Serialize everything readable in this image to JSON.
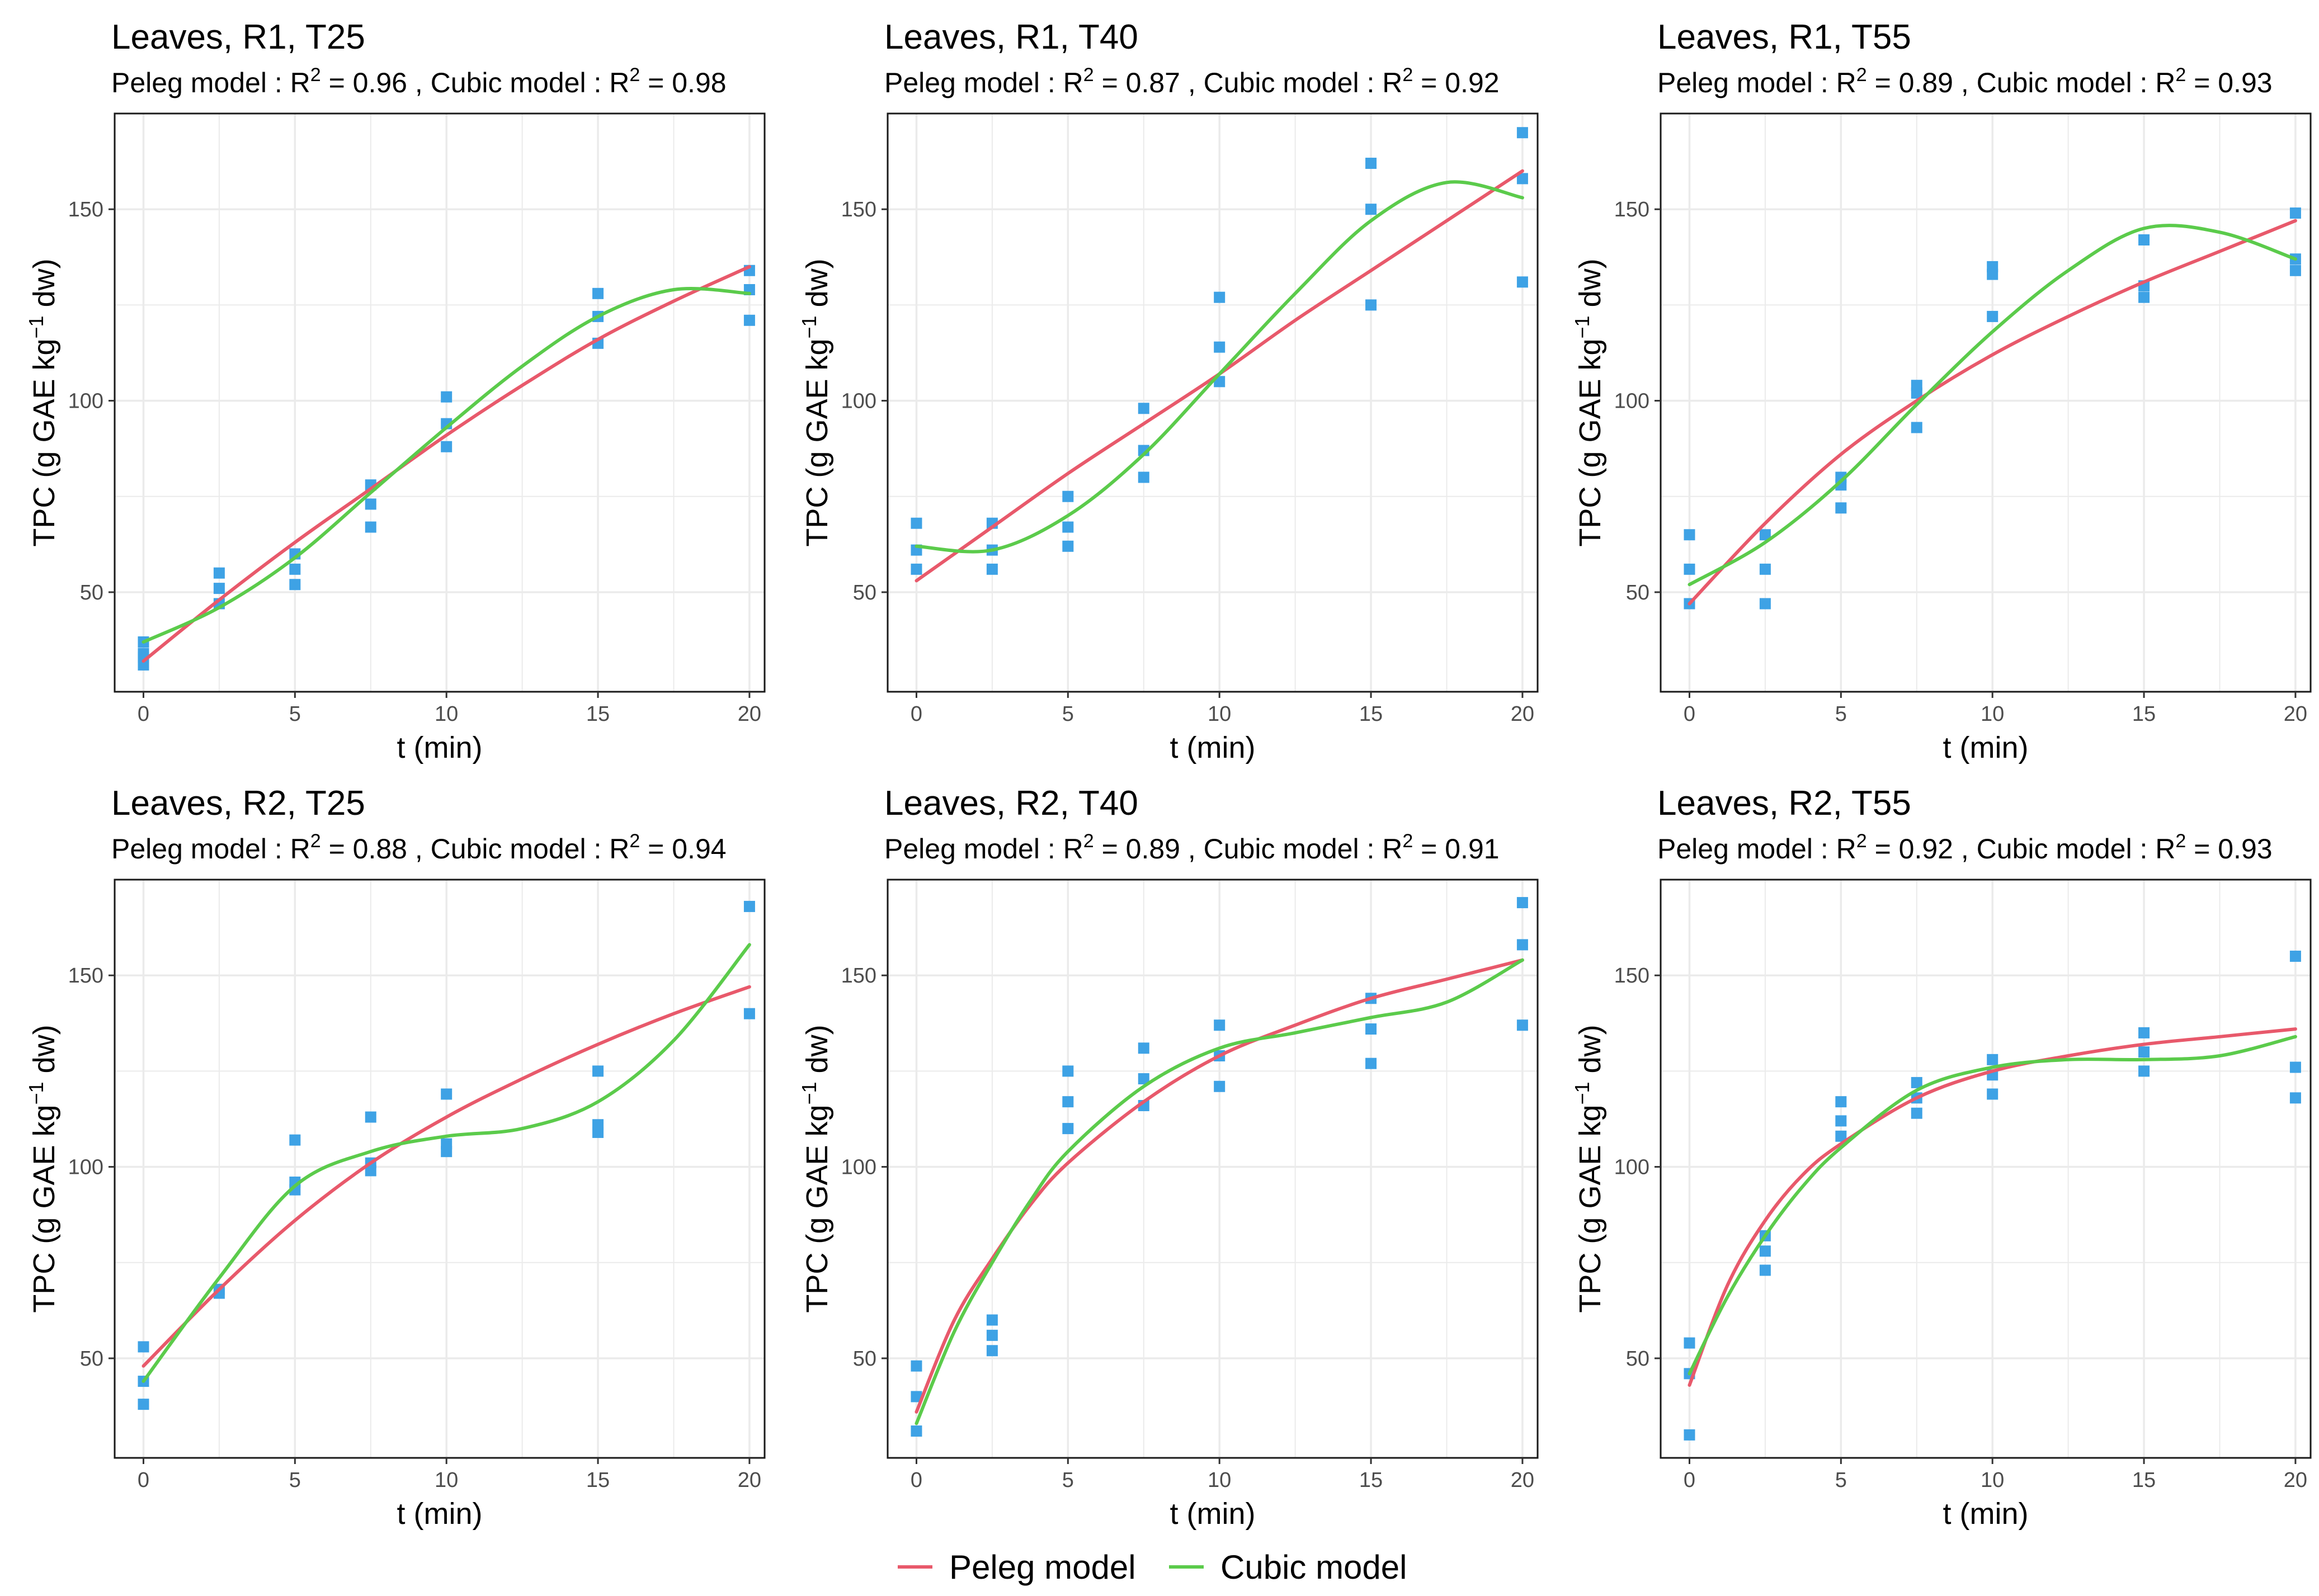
{
  "figure": {
    "legend": [
      {
        "label": "Peleg model",
        "color": "#E8596B"
      },
      {
        "label": "Cubic model",
        "color": "#5BCB4B"
      }
    ],
    "point_color": "#3EA2E5",
    "grid_color": "#EBEBEB"
  },
  "chart_data": [
    {
      "type": "scatter",
      "title": "Leaves, R1, T25",
      "subtitle": {
        "peleg_label": "Peleg model :",
        "peleg_r2": "0.96",
        "cubic_label": "Cubic model :",
        "cubic_r2": "0.98"
      },
      "xlabel": "t (min)",
      "ylabel": "TPC (g GAE kg⁻¹ dw)",
      "xlim": [
        -0.95,
        20.5
      ],
      "ylim": [
        24,
        175
      ],
      "xticks": [
        0,
        5,
        10,
        15,
        20
      ],
      "yticks": [
        50,
        100,
        150
      ],
      "points": {
        "x": [
          0,
          0,
          0,
          0,
          2.5,
          2.5,
          2.5,
          5,
          5,
          5,
          7.5,
          7.5,
          7.5,
          10,
          10,
          10,
          15,
          15,
          15,
          20,
          20,
          20
        ],
        "y": [
          37,
          34,
          33,
          31,
          55,
          51,
          47,
          60,
          56,
          52,
          78,
          73,
          67,
          101,
          94,
          88,
          128,
          122,
          115,
          134,
          129,
          121
        ]
      },
      "series": [
        {
          "name": "Peleg model",
          "x": [
            0,
            2.5,
            5,
            7.5,
            10,
            12.5,
            15,
            17.5,
            20
          ],
          "y": [
            32,
            48,
            63,
            77,
            91,
            104,
            116,
            126,
            135
          ]
        },
        {
          "name": "Cubic model",
          "x": [
            0,
            2.5,
            5,
            7.5,
            10,
            12.5,
            15,
            17.5,
            20
          ],
          "y": [
            37,
            46,
            59,
            76,
            93,
            109,
            122,
            129,
            128
          ]
        }
      ]
    },
    {
      "type": "scatter",
      "title": "Leaves, R1, T40",
      "subtitle": {
        "peleg_label": "Peleg model :",
        "peleg_r2": "0.87",
        "cubic_label": "Cubic model :",
        "cubic_r2": "0.92"
      },
      "xlabel": "t (min)",
      "ylabel": "TPC (g GAE kg⁻¹ dw)",
      "xlim": [
        -0.95,
        20.5
      ],
      "ylim": [
        24,
        175
      ],
      "xticks": [
        0,
        5,
        10,
        15,
        20
      ],
      "yticks": [
        50,
        100,
        150
      ],
      "points": {
        "x": [
          0,
          0,
          0,
          2.5,
          2.5,
          2.5,
          5,
          5,
          5,
          7.5,
          7.5,
          7.5,
          10,
          10,
          10,
          15,
          15,
          15,
          20,
          20,
          20
        ],
        "y": [
          68,
          61,
          56,
          68,
          61,
          56,
          75,
          67,
          62,
          98,
          87,
          80,
          127,
          114,
          105,
          162,
          150,
          125,
          170,
          158,
          131
        ]
      },
      "series": [
        {
          "name": "Peleg model",
          "x": [
            0,
            2.5,
            5,
            7.5,
            10,
            12.5,
            15,
            17.5,
            20
          ],
          "y": [
            53,
            67,
            81,
            94,
            107,
            121,
            134,
            147,
            160
          ]
        },
        {
          "name": "Cubic model",
          "x": [
            0,
            2.5,
            5,
            7.5,
            10,
            12.5,
            15,
            17.5,
            20
          ],
          "y": [
            62,
            61,
            70,
            86,
            107,
            128,
            147,
            157,
            153
          ]
        }
      ]
    },
    {
      "type": "scatter",
      "title": "Leaves, R1, T55",
      "subtitle": {
        "peleg_label": "Peleg model :",
        "peleg_r2": "0.89",
        "cubic_label": "Cubic model :",
        "cubic_r2": "0.93"
      },
      "xlabel": "t (min)",
      "ylabel": "TPC (g GAE kg⁻¹ dw)",
      "xlim": [
        -0.95,
        20.5
      ],
      "ylim": [
        24,
        175
      ],
      "xticks": [
        0,
        5,
        10,
        15,
        20
      ],
      "yticks": [
        50,
        100,
        150
      ],
      "points": {
        "x": [
          0,
          0,
          0,
          2.5,
          2.5,
          2.5,
          5,
          5,
          5,
          7.5,
          7.5,
          7.5,
          10,
          10,
          10,
          15,
          15,
          15,
          20,
          20,
          20
        ],
        "y": [
          65,
          56,
          47,
          65,
          56,
          47,
          80,
          78,
          72,
          104,
          102,
          93,
          135,
          133,
          122,
          142,
          130,
          127,
          149,
          137,
          134
        ]
      },
      "series": [
        {
          "name": "Peleg model",
          "x": [
            0,
            2.5,
            5,
            7.5,
            10,
            12.5,
            15,
            17.5,
            20
          ],
          "y": [
            47,
            68,
            86,
            100,
            112,
            122,
            131,
            139,
            147
          ]
        },
        {
          "name": "Cubic model",
          "x": [
            0,
            2.5,
            5,
            7.5,
            10,
            12.5,
            15,
            17.5,
            20
          ],
          "y": [
            52,
            63,
            79,
            99,
            118,
            134,
            145,
            144,
            137
          ]
        }
      ]
    },
    {
      "type": "scatter",
      "title": "Leaves, R2, T25",
      "subtitle": {
        "peleg_label": "Peleg model :",
        "peleg_r2": "0.88",
        "cubic_label": "Cubic model :",
        "cubic_r2": "0.94"
      },
      "xlabel": "t (min)",
      "ylabel": "TPC (g GAE kg⁻¹ dw)",
      "xlim": [
        -0.95,
        20.5
      ],
      "ylim": [
        24,
        175
      ],
      "xticks": [
        0,
        5,
        10,
        15,
        20
      ],
      "yticks": [
        50,
        100,
        150
      ],
      "points": {
        "x": [
          0,
          0,
          0,
          2.5,
          2.5,
          5,
          5,
          5,
          7.5,
          7.5,
          7.5,
          10,
          10,
          10,
          15,
          15,
          15,
          20,
          20
        ],
        "y": [
          53,
          44,
          38,
          68,
          67,
          107,
          96,
          94,
          113,
          101,
          99,
          119,
          106,
          104,
          125,
          111,
          109,
          168,
          140
        ]
      },
      "series": [
        {
          "name": "Peleg model",
          "x": [
            0,
            2.5,
            5,
            7.5,
            10,
            12.5,
            15,
            17.5,
            20
          ],
          "y": [
            48,
            68,
            86,
            101,
            113,
            123,
            132,
            140,
            147
          ]
        },
        {
          "name": "Cubic model",
          "x": [
            0,
            2.5,
            5,
            7.5,
            10,
            12.5,
            15,
            17.5,
            20
          ],
          "y": [
            44,
            71,
            95,
            104,
            108,
            110,
            117,
            133,
            158
          ]
        }
      ]
    },
    {
      "type": "scatter",
      "title": "Leaves, R2, T40",
      "subtitle": {
        "peleg_label": "Peleg model :",
        "peleg_r2": "0.89",
        "cubic_label": "Cubic model :",
        "cubic_r2": "0.91"
      },
      "xlabel": "t (min)",
      "ylabel": "TPC (g GAE kg⁻¹ dw)",
      "xlim": [
        -0.95,
        20.5
      ],
      "ylim": [
        24,
        175
      ],
      "xticks": [
        0,
        5,
        10,
        15,
        20
      ],
      "yticks": [
        50,
        100,
        150
      ],
      "points": {
        "x": [
          0,
          0,
          0,
          2.5,
          2.5,
          2.5,
          5,
          5,
          5,
          7.5,
          7.5,
          7.5,
          10,
          10,
          10,
          15,
          15,
          15,
          20,
          20,
          20
        ],
        "y": [
          48,
          40,
          31,
          60,
          56,
          52,
          125,
          117,
          110,
          131,
          123,
          116,
          137,
          129,
          121,
          144,
          136,
          127,
          169,
          158,
          137
        ]
      },
      "series": [
        {
          "name": "Peleg model",
          "x": [
            0,
            1.25,
            2.5,
            3.75,
            5,
            7.5,
            10,
            12.5,
            15,
            17.5,
            20
          ],
          "y": [
            36,
            60,
            76,
            90,
            101,
            117,
            129,
            137,
            144,
            149,
            154
          ]
        },
        {
          "name": "Cubic model",
          "x": [
            0,
            1.25,
            2.5,
            3.75,
            5,
            7.5,
            10,
            12.5,
            15,
            17.5,
            20
          ],
          "y": [
            33,
            57,
            75,
            91,
            104,
            121,
            131,
            135,
            139,
            143,
            154
          ]
        }
      ]
    },
    {
      "type": "scatter",
      "title": "Leaves, R2, T55",
      "subtitle": {
        "peleg_label": "Peleg model :",
        "peleg_r2": "0.92",
        "cubic_label": "Cubic model :",
        "cubic_r2": "0.93"
      },
      "xlabel": "t (min)",
      "ylabel": "TPC (g GAE kg⁻¹ dw)",
      "xlim": [
        -0.95,
        20.5
      ],
      "ylim": [
        24,
        175
      ],
      "xticks": [
        0,
        5,
        10,
        15,
        20
      ],
      "yticks": [
        50,
        100,
        150
      ],
      "points": {
        "x": [
          0,
          0,
          0,
          2.5,
          2.5,
          2.5,
          5,
          5,
          5,
          7.5,
          7.5,
          7.5,
          10,
          10,
          10,
          15,
          15,
          15,
          20,
          20,
          20
        ],
        "y": [
          54,
          46,
          30,
          82,
          78,
          73,
          117,
          112,
          108,
          122,
          118,
          114,
          128,
          124,
          119,
          135,
          130,
          125,
          155,
          126,
          118
        ]
      },
      "series": [
        {
          "name": "Peleg model",
          "x": [
            0,
            1.25,
            2.5,
            3.75,
            5,
            7.5,
            10,
            12.5,
            15,
            17.5,
            20
          ],
          "y": [
            43,
            69,
            86,
            98,
            106,
            118,
            125,
            129,
            132,
            134,
            136
          ]
        },
        {
          "name": "Cubic model",
          "x": [
            0,
            1.25,
            2.5,
            3.75,
            5,
            7.5,
            10,
            12.5,
            15,
            17.5,
            20
          ],
          "y": [
            46,
            66,
            82,
            95,
            105,
            120,
            126,
            128,
            128,
            129,
            134
          ]
        }
      ]
    }
  ]
}
